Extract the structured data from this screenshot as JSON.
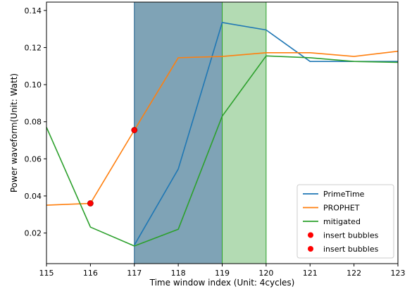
{
  "chart_data": {
    "type": "line",
    "title": "",
    "xlabel": "Time window index (Unit: 4cycles)",
    "ylabel": "Power waveform(Unit: Watt)",
    "xlim": [
      115,
      123
    ],
    "ylim": [
      0.0035,
      0.1445
    ],
    "xticks": [
      115,
      116,
      117,
      118,
      119,
      120,
      121,
      122,
      123
    ],
    "yticks": [
      0.02,
      0.04,
      0.06,
      0.08,
      0.1,
      0.12,
      0.14
    ],
    "ytick_labels": [
      "0.02",
      "0.04",
      "0.06",
      "0.08",
      "0.10",
      "0.12",
      "0.14"
    ],
    "grid": false,
    "legend": "lower-right",
    "shaded_regions": [
      {
        "x0": 117,
        "x1": 119,
        "color": "#7fa3b6",
        "edge": "#1f5f8b"
      },
      {
        "x0": 119,
        "x1": 120,
        "color": "#b3dbb3",
        "edge": "#2ca02c"
      }
    ],
    "series": [
      {
        "name": "PrimeTime",
        "color": "#1f77b4",
        "x": [
          117,
          118,
          119,
          120,
          121,
          122,
          123
        ],
        "y": [
          0.0135,
          0.0545,
          0.1335,
          0.1295,
          0.1125,
          0.1125,
          0.1125
        ]
      },
      {
        "name": "PROPHET",
        "color": "#ff7f0e",
        "x": [
          115,
          116,
          117,
          118,
          119,
          120,
          121,
          122,
          123
        ],
        "y": [
          0.035,
          0.036,
          0.0755,
          0.1145,
          0.1152,
          0.1172,
          0.1172,
          0.1152,
          0.118
        ]
      },
      {
        "name": "mitigated",
        "color": "#2ca02c",
        "x": [
          115,
          116,
          117,
          118,
          119,
          120,
          121,
          122,
          123
        ],
        "y": [
          0.077,
          0.0232,
          0.013,
          0.022,
          0.083,
          0.1155,
          0.1145,
          0.1125,
          0.112
        ]
      }
    ],
    "markers": [
      {
        "name": "insert bubbles",
        "color": "#ff0000",
        "x": 116,
        "y": 0.036
      },
      {
        "name": "insert bubbles",
        "color": "#ff0000",
        "x": 117,
        "y": 0.0755
      }
    ]
  }
}
